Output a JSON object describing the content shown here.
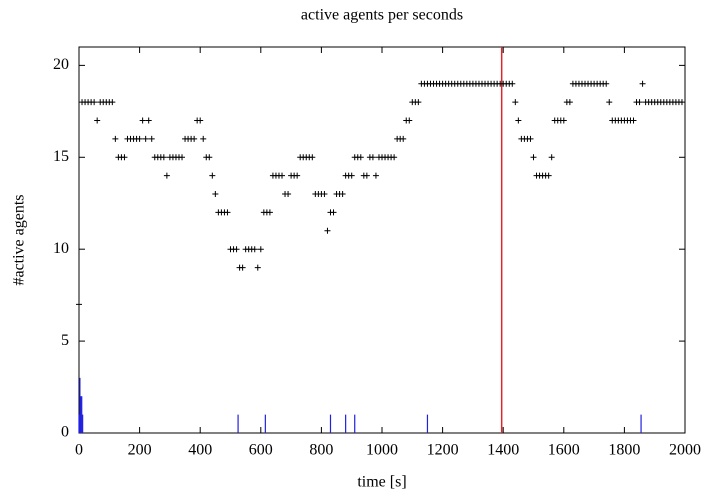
{
  "chart_data": {
    "type": "scatter",
    "title": "active agents per seconds",
    "xlabel": "time [s]",
    "ylabel": "#active agents",
    "xlim": [
      0,
      2000
    ],
    "xticks": [
      0,
      200,
      400,
      600,
      800,
      1000,
      1200,
      1400,
      1600,
      1800,
      2000
    ],
    "ylim": [
      0,
      21
    ],
    "yticks": [
      0,
      5,
      10,
      15,
      20
    ],
    "vline": {
      "value": 1395,
      "color": "#e0242c"
    },
    "series": [
      {
        "type": "scatter",
        "color": "#000000",
        "x": [
          0,
          10,
          20,
          30,
          40,
          50,
          60,
          70,
          80,
          90,
          100,
          110,
          120,
          130,
          140,
          150,
          160,
          170,
          180,
          190,
          200,
          210,
          220,
          230,
          240,
          250,
          260,
          270,
          280,
          290,
          300,
          310,
          320,
          330,
          340,
          350,
          360,
          370,
          380,
          390,
          400,
          410,
          420,
          430,
          440,
          450,
          460,
          470,
          480,
          490,
          500,
          510,
          520,
          530,
          540,
          550,
          560,
          570,
          580,
          590,
          600,
          610,
          620,
          630,
          640,
          650,
          660,
          670,
          680,
          690,
          700,
          710,
          720,
          730,
          740,
          750,
          760,
          770,
          780,
          790,
          800,
          810,
          820,
          830,
          840,
          850,
          860,
          870,
          880,
          890,
          900,
          910,
          920,
          930,
          940,
          950,
          960,
          970,
          980,
          990,
          1000,
          1010,
          1020,
          1030,
          1040,
          1050,
          1060,
          1070,
          1080,
          1090,
          1100,
          1110,
          1120,
          1130,
          1140,
          1150,
          1160,
          1170,
          1180,
          1190,
          1200,
          1210,
          1220,
          1230,
          1240,
          1250,
          1260,
          1270,
          1280,
          1290,
          1300,
          1310,
          1320,
          1330,
          1340,
          1350,
          1360,
          1370,
          1380,
          1390,
          1400,
          1410,
          1420,
          1430,
          1440,
          1450,
          1460,
          1470,
          1480,
          1490,
          1500,
          1510,
          1520,
          1530,
          1540,
          1550,
          1560,
          1570,
          1580,
          1590,
          1600,
          1610,
          1620,
          1630,
          1640,
          1650,
          1660,
          1670,
          1680,
          1690,
          1700,
          1710,
          1720,
          1730,
          1740,
          1750,
          1760,
          1770,
          1780,
          1790,
          1800,
          1810,
          1820,
          1830,
          1840,
          1850,
          1860,
          1870,
          1880,
          1890,
          1900,
          1910,
          1920,
          1930,
          1940,
          1950,
          1960,
          1970,
          1980,
          1990
        ],
        "values": [
          7,
          18,
          18,
          18,
          18,
          18,
          17,
          18,
          18,
          18,
          18,
          18,
          16,
          15,
          15,
          15,
          16,
          16,
          16,
          16,
          16,
          17,
          16,
          17,
          16,
          15,
          15,
          15,
          15,
          14,
          15,
          15,
          15,
          15,
          15,
          16,
          16,
          16,
          16,
          17,
          17,
          16,
          15,
          15,
          14,
          13,
          12,
          12,
          12,
          12,
          10,
          10,
          10,
          9,
          9,
          10,
          10,
          10,
          10,
          9,
          10,
          12,
          12,
          12,
          14,
          14,
          14,
          14,
          13,
          13,
          14,
          14,
          14,
          15,
          15,
          15,
          15,
          15,
          13,
          13,
          13,
          13,
          11,
          12,
          12,
          13,
          13,
          13,
          14,
          14,
          14,
          15,
          15,
          15,
          14,
          14,
          15,
          15,
          14,
          15,
          15,
          15,
          15,
          15,
          15,
          16,
          16,
          16,
          17,
          17,
          18,
          18,
          18,
          19,
          19,
          19,
          19,
          19,
          19,
          19,
          19,
          19,
          19,
          19,
          19,
          19,
          19,
          19,
          19,
          19,
          19,
          19,
          19,
          19,
          19,
          19,
          19,
          19,
          19,
          19,
          19,
          19,
          19,
          19,
          18,
          17,
          16,
          16,
          16,
          16,
          15,
          14,
          14,
          14,
          14,
          14,
          15,
          17,
          17,
          17,
          17,
          18,
          18,
          19,
          19,
          19,
          19,
          19,
          19,
          19,
          19,
          19,
          19,
          19,
          19,
          18,
          17,
          17,
          17,
          17,
          17,
          17,
          17,
          17,
          18,
          18,
          19,
          18,
          18,
          18,
          18,
          18,
          18,
          18,
          18,
          18,
          18,
          18,
          18,
          18
        ]
      },
      {
        "type": "impulse",
        "color": "#2020e0",
        "x": [
          0,
          3,
          6,
          9,
          12,
          525,
          615,
          830,
          880,
          910,
          1150,
          1855
        ],
        "values": [
          1,
          3,
          2,
          2,
          1,
          1,
          1,
          1,
          1,
          1,
          1,
          1
        ]
      }
    ]
  }
}
